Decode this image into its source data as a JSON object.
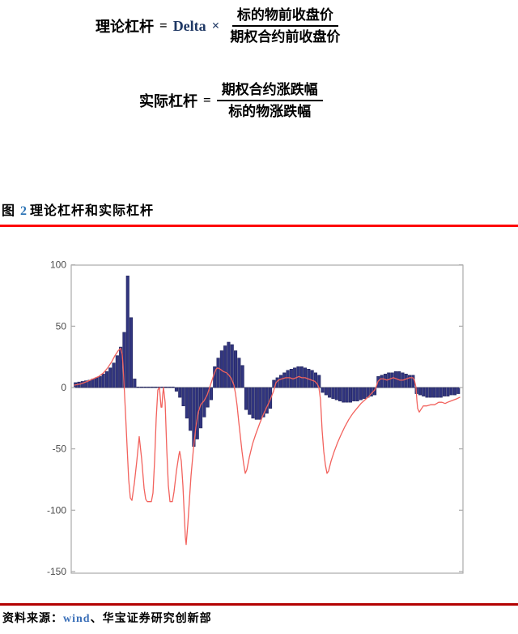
{
  "formulas": {
    "formula1": {
      "lhs": "理论杠杆",
      "equals": "=",
      "coef": "Delta",
      "times": "×",
      "numerator": "标的物前收盘价",
      "denominator": "期权合约前收盘价"
    },
    "formula2": {
      "lhs": "实际杠杆",
      "equals": "=",
      "numerator": "期权合约涨跌幅",
      "denominator": "标的物涨跌幅"
    }
  },
  "caption": {
    "prefix": "图",
    "number": "2",
    "title": "理论杠杆和实际杠杆"
  },
  "source": {
    "label": "资料来源：",
    "vendor": "wind",
    "separator": "、",
    "org": "华宝证券研究创新部"
  },
  "colors": {
    "bar": "#31357f",
    "bar_edge": "#22255c",
    "line": "#f2625d",
    "axis": "#ababab",
    "zero_line": "#8c8c8c",
    "axis_text": "#4d4d4d",
    "caption_rule": "#fe0000",
    "source_rule": "#b30000",
    "figure_number_blue": "#2e75b6",
    "vendor_blue": "#3a6fb8",
    "delta_blue": "#1f3864"
  },
  "chart_data": {
    "type": "bar",
    "title": "图 2 理论杠杆和实际杠杆",
    "xlabel": "",
    "ylabel": "",
    "ylim": [
      -150,
      100
    ],
    "yticks": [
      100,
      50,
      0,
      -50,
      -100,
      -150
    ],
    "grid": false,
    "legend": "none",
    "x_tick_labels": "none",
    "series": [
      {
        "name": "理论杠杆-bars",
        "type": "bar",
        "values": [
          4,
          4.5,
          5,
          5.5,
          6,
          7,
          8,
          9,
          11,
          13,
          16,
          20,
          26,
          33,
          45,
          91,
          57,
          7,
          0.5,
          0.5,
          0.5,
          0.5,
          0.5,
          0.5,
          0.5,
          0.5,
          0.5,
          0.5,
          0.5,
          -3,
          -8,
          -15,
          -25,
          -35,
          -48,
          -42,
          -33,
          -24,
          -16,
          -10,
          17,
          24,
          30,
          34,
          37,
          35,
          30,
          24,
          18,
          -18,
          -22,
          -25,
          -26,
          -26,
          -24,
          -21,
          -17,
          6,
          8,
          10,
          12,
          14,
          15,
          16,
          17,
          17,
          16,
          15,
          14,
          12,
          10,
          -4,
          -6,
          -8,
          -9,
          -10,
          -11,
          -12,
          -12,
          -12,
          -11,
          -11,
          -10,
          -9,
          -8,
          -7,
          -6,
          9,
          10,
          11,
          12,
          12,
          13,
          13,
          12,
          11,
          10,
          10,
          -5,
          -6,
          -7,
          -8,
          -8,
          -8,
          -8,
          -8,
          -7,
          -7,
          -6,
          -6,
          -5
        ]
      },
      {
        "name": "实际杠杆-line",
        "type": "line",
        "points": [
          [
            92,
            2
          ],
          [
            100,
            3
          ],
          [
            108,
            5
          ],
          [
            115,
            7
          ],
          [
            122,
            9
          ],
          [
            128,
            12
          ],
          [
            133,
            16
          ],
          [
            138,
            21
          ],
          [
            142,
            26
          ],
          [
            146,
            30
          ],
          [
            149,
            32
          ],
          [
            151,
            27
          ],
          [
            152,
            18
          ],
          [
            153,
            6
          ],
          [
            155,
            -20
          ],
          [
            157,
            -48
          ],
          [
            159,
            -75
          ],
          [
            161,
            -90
          ],
          [
            163,
            -92
          ],
          [
            166,
            -78
          ],
          [
            169,
            -60
          ],
          [
            172,
            -40
          ],
          [
            175,
            -58
          ],
          [
            178,
            -82
          ],
          [
            180,
            -91
          ],
          [
            182,
            -93
          ],
          [
            187,
            -93
          ],
          [
            189,
            -86
          ],
          [
            191,
            -60
          ],
          [
            193,
            -25
          ],
          [
            195,
            -2
          ],
          [
            197,
            0
          ],
          [
            198,
            -8
          ],
          [
            199,
            -16
          ],
          [
            200,
            -16
          ],
          [
            201,
            -6
          ],
          [
            202,
            0
          ],
          [
            204,
            -12
          ],
          [
            206,
            -50
          ],
          [
            208,
            -80
          ],
          [
            210,
            -93
          ],
          [
            213,
            -93
          ],
          [
            215,
            -85
          ],
          [
            218,
            -68
          ],
          [
            221,
            -55
          ],
          [
            222,
            -52
          ],
          [
            224,
            -60
          ],
          [
            226,
            -80
          ],
          [
            228,
            -108
          ],
          [
            229,
            -122
          ],
          [
            230,
            -128
          ],
          [
            232,
            -112
          ],
          [
            234,
            -92
          ],
          [
            236,
            -72
          ],
          [
            239,
            -50
          ],
          [
            242,
            -32
          ],
          [
            245,
            -20
          ],
          [
            248,
            -14
          ],
          [
            252,
            -11
          ],
          [
            256,
            -6
          ],
          [
            260,
            2
          ],
          [
            264,
            10
          ],
          [
            267,
            15
          ],
          [
            269,
            16
          ],
          [
            272,
            15
          ],
          [
            276,
            13
          ],
          [
            280,
            12
          ],
          [
            283,
            10
          ],
          [
            286,
            7
          ],
          [
            289,
            2
          ],
          [
            291,
            -5
          ],
          [
            293,
            -15
          ],
          [
            295,
            -28
          ],
          [
            297,
            -40
          ],
          [
            299,
            -52
          ],
          [
            301,
            -62
          ],
          [
            303,
            -70
          ],
          [
            305,
            -67
          ],
          [
            308,
            -57
          ],
          [
            312,
            -46
          ],
          [
            316,
            -38
          ],
          [
            321,
            -29
          ],
          [
            326,
            -21
          ],
          [
            331,
            -14
          ],
          [
            335,
            -8
          ],
          [
            338,
            -3
          ],
          [
            341,
            4
          ],
          [
            344,
            6
          ],
          [
            348,
            7
          ],
          [
            353,
            8
          ],
          [
            358,
            8
          ],
          [
            362,
            7
          ],
          [
            366,
            8
          ],
          [
            369,
            9
          ],
          [
            373,
            8
          ],
          [
            377,
            8
          ],
          [
            381,
            7
          ],
          [
            385,
            6
          ],
          [
            389,
            5
          ],
          [
            392,
            3
          ],
          [
            394,
            0
          ],
          [
            396,
            -10
          ],
          [
            398,
            -35
          ],
          [
            400,
            -52
          ],
          [
            402,
            -63
          ],
          [
            404,
            -70
          ],
          [
            406,
            -68
          ],
          [
            409,
            -60
          ],
          [
            413,
            -52
          ],
          [
            417,
            -45
          ],
          [
            421,
            -39
          ],
          [
            426,
            -32
          ],
          [
            431,
            -26
          ],
          [
            436,
            -21
          ],
          [
            441,
            -17
          ],
          [
            446,
            -13
          ],
          [
            451,
            -10
          ],
          [
            456,
            -7
          ],
          [
            460,
            -4
          ],
          [
            463,
            -2
          ],
          [
            465,
            1
          ],
          [
            467,
            5
          ],
          [
            470,
            7
          ],
          [
            474,
            7
          ],
          [
            478,
            6
          ],
          [
            482,
            7
          ],
          [
            486,
            8
          ],
          [
            490,
            7
          ],
          [
            494,
            6
          ],
          [
            498,
            6
          ],
          [
            502,
            7
          ],
          [
            506,
            8
          ],
          [
            510,
            8
          ],
          [
            512,
            6
          ],
          [
            514,
            0
          ],
          [
            515,
            -10
          ],
          [
            516,
            -17
          ],
          [
            518,
            -20
          ],
          [
            520,
            -18
          ],
          [
            523,
            -15
          ],
          [
            527,
            -15
          ],
          [
            532,
            -14
          ],
          [
            537,
            -14
          ],
          [
            542,
            -12
          ],
          [
            546,
            -12
          ],
          [
            550,
            -13
          ],
          [
            553,
            -12
          ],
          [
            557,
            -11
          ],
          [
            561,
            -10
          ],
          [
            565,
            -9
          ],
          [
            568,
            -8
          ]
        ]
      }
    ]
  }
}
